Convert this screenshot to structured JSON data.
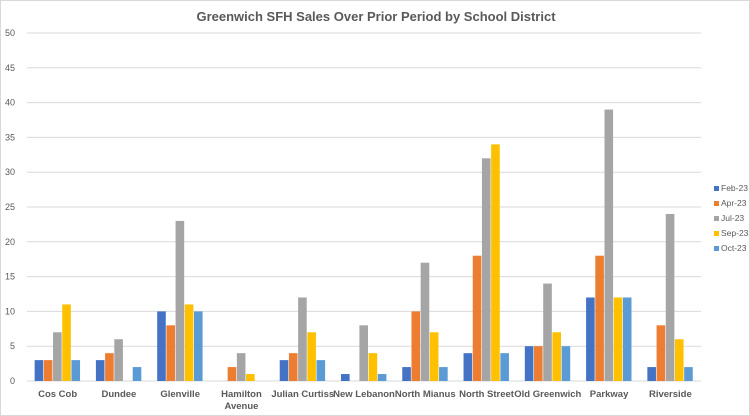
{
  "chart_data": {
    "type": "bar",
    "title": "Greenwich SFH Sales Over Prior Period by School District",
    "xlabel": "",
    "ylabel": "",
    "ylim": [
      0,
      50
    ],
    "yticks": [
      "0",
      "5",
      "10",
      "15",
      "20",
      "25",
      "30",
      "35",
      "40",
      "45",
      "50"
    ],
    "grid": true,
    "legend_position": "right",
    "categories": [
      "Cos Cob",
      "Dundee",
      "Glenville",
      "Hamilton Avenue",
      "Julian Curtiss",
      "New Lebanon",
      "North Mianus",
      "North Street",
      "Old Greenwich",
      "Parkway",
      "Riverside"
    ],
    "series": [
      {
        "name": "Feb-23",
        "color": "#4472C4",
        "values": [
          3,
          3,
          10,
          0,
          3,
          1,
          2,
          4,
          5,
          12,
          2
        ]
      },
      {
        "name": "Apr-23",
        "color": "#ED7D31",
        "values": [
          3,
          4,
          8,
          2,
          4,
          0,
          10,
          18,
          5,
          18,
          8
        ]
      },
      {
        "name": "Jul-23",
        "color": "#A5A5A5",
        "values": [
          7,
          6,
          23,
          4,
          12,
          8,
          17,
          32,
          14,
          39,
          24
        ]
      },
      {
        "name": "Sep-23",
        "color": "#FFC000",
        "values": [
          11,
          0,
          11,
          1,
          7,
          4,
          7,
          34,
          7,
          12,
          6
        ]
      },
      {
        "name": "Oct-23",
        "color": "#5B9BD5",
        "values": [
          3,
          2,
          10,
          0,
          3,
          1,
          2,
          4,
          5,
          12,
          2
        ]
      }
    ]
  }
}
